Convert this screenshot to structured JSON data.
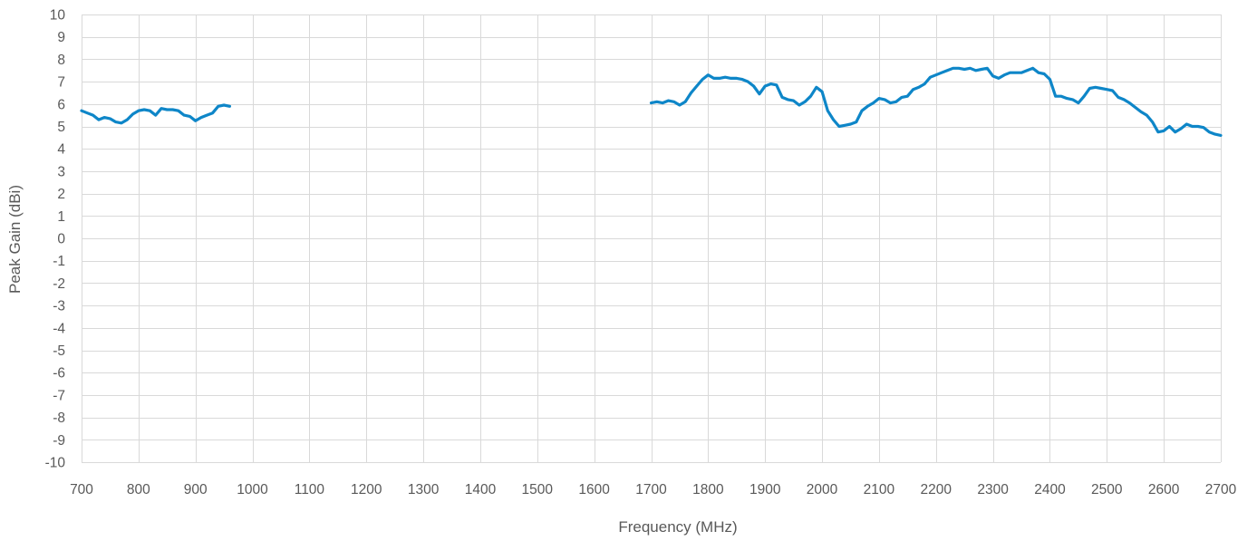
{
  "chart_data": {
    "type": "line",
    "title": "",
    "xlabel": "Frequency (MHz)",
    "ylabel": "Peak Gain (dBi)",
    "xlim": [
      700,
      2700
    ],
    "ylim": [
      -10,
      10
    ],
    "x_ticks": [
      700,
      800,
      900,
      1000,
      1100,
      1200,
      1300,
      1400,
      1500,
      1600,
      1700,
      1800,
      1900,
      2000,
      2100,
      2200,
      2300,
      2400,
      2500,
      2600,
      2700
    ],
    "y_ticks": [
      10,
      9,
      8,
      7,
      6,
      5,
      4,
      3,
      2,
      1,
      0,
      -1,
      -2,
      -3,
      -4,
      -5,
      -6,
      -7,
      -8,
      -9,
      -10
    ],
    "grid": true,
    "legend": "none",
    "line_color": "#0e86c8",
    "series": [
      {
        "segments": [
          [
            [
              700,
              5.7
            ],
            [
              710,
              5.6
            ],
            [
              720,
              5.5
            ],
            [
              730,
              5.3
            ],
            [
              740,
              5.4
            ],
            [
              750,
              5.35
            ],
            [
              760,
              5.2
            ],
            [
              770,
              5.15
            ],
            [
              780,
              5.3
            ],
            [
              790,
              5.55
            ],
            [
              800,
              5.7
            ],
            [
              810,
              5.75
            ],
            [
              820,
              5.7
            ],
            [
              830,
              5.5
            ],
            [
              840,
              5.8
            ],
            [
              850,
              5.75
            ],
            [
              860,
              5.75
            ],
            [
              870,
              5.7
            ],
            [
              880,
              5.5
            ],
            [
              890,
              5.45
            ],
            [
              900,
              5.25
            ],
            [
              910,
              5.4
            ],
            [
              920,
              5.5
            ],
            [
              930,
              5.6
            ],
            [
              940,
              5.9
            ],
            [
              950,
              5.95
            ],
            [
              960,
              5.9
            ]
          ],
          [
            [
              1700,
              6.05
            ],
            [
              1710,
              6.1
            ],
            [
              1720,
              6.05
            ],
            [
              1730,
              6.15
            ],
            [
              1740,
              6.1
            ],
            [
              1750,
              5.95
            ],
            [
              1760,
              6.1
            ],
            [
              1770,
              6.5
            ],
            [
              1780,
              6.8
            ],
            [
              1790,
              7.1
            ],
            [
              1800,
              7.3
            ],
            [
              1810,
              7.15
            ],
            [
              1820,
              7.15
            ],
            [
              1830,
              7.2
            ],
            [
              1840,
              7.15
            ],
            [
              1850,
              7.15
            ],
            [
              1860,
              7.1
            ],
            [
              1870,
              7.0
            ],
            [
              1880,
              6.8
            ],
            [
              1890,
              6.45
            ],
            [
              1900,
              6.8
            ],
            [
              1910,
              6.9
            ],
            [
              1920,
              6.85
            ],
            [
              1930,
              6.3
            ],
            [
              1940,
              6.2
            ],
            [
              1950,
              6.15
            ],
            [
              1960,
              5.95
            ],
            [
              1970,
              6.1
            ],
            [
              1980,
              6.35
            ],
            [
              1990,
              6.75
            ],
            [
              2000,
              6.55
            ],
            [
              2010,
              5.7
            ],
            [
              2020,
              5.3
            ],
            [
              2030,
              5.0
            ],
            [
              2040,
              5.05
            ],
            [
              2050,
              5.1
            ],
            [
              2060,
              5.2
            ],
            [
              2070,
              5.7
            ],
            [
              2080,
              5.9
            ],
            [
              2090,
              6.05
            ],
            [
              2100,
              6.25
            ],
            [
              2110,
              6.2
            ],
            [
              2120,
              6.05
            ],
            [
              2130,
              6.1
            ],
            [
              2140,
              6.3
            ],
            [
              2150,
              6.35
            ],
            [
              2160,
              6.65
            ],
            [
              2170,
              6.75
            ],
            [
              2180,
              6.9
            ],
            [
              2190,
              7.2
            ],
            [
              2200,
              7.3
            ],
            [
              2210,
              7.4
            ],
            [
              2220,
              7.5
            ],
            [
              2230,
              7.6
            ],
            [
              2240,
              7.6
            ],
            [
              2250,
              7.55
            ],
            [
              2260,
              7.6
            ],
            [
              2270,
              7.5
            ],
            [
              2280,
              7.55
            ],
            [
              2290,
              7.6
            ],
            [
              2300,
              7.25
            ],
            [
              2310,
              7.15
            ],
            [
              2320,
              7.3
            ],
            [
              2330,
              7.4
            ],
            [
              2340,
              7.4
            ],
            [
              2350,
              7.4
            ],
            [
              2360,
              7.5
            ],
            [
              2370,
              7.6
            ],
            [
              2380,
              7.4
            ],
            [
              2390,
              7.35
            ],
            [
              2400,
              7.1
            ],
            [
              2410,
              6.35
            ],
            [
              2420,
              6.35
            ],
            [
              2430,
              6.25
            ],
            [
              2440,
              6.2
            ],
            [
              2450,
              6.05
            ],
            [
              2460,
              6.35
            ],
            [
              2470,
              6.7
            ],
            [
              2480,
              6.75
            ],
            [
              2490,
              6.7
            ],
            [
              2500,
              6.65
            ],
            [
              2510,
              6.6
            ],
            [
              2520,
              6.3
            ],
            [
              2530,
              6.2
            ],
            [
              2540,
              6.05
            ],
            [
              2550,
              5.85
            ],
            [
              2560,
              5.65
            ],
            [
              2570,
              5.5
            ],
            [
              2580,
              5.2
            ],
            [
              2590,
              4.75
            ],
            [
              2600,
              4.8
            ],
            [
              2610,
              5.0
            ],
            [
              2620,
              4.75
            ],
            [
              2630,
              4.9
            ],
            [
              2640,
              5.1
            ],
            [
              2650,
              5.0
            ],
            [
              2660,
              5.0
            ],
            [
              2670,
              4.95
            ],
            [
              2680,
              4.75
            ],
            [
              2690,
              4.65
            ],
            [
              2700,
              4.6
            ]
          ]
        ]
      }
    ]
  }
}
